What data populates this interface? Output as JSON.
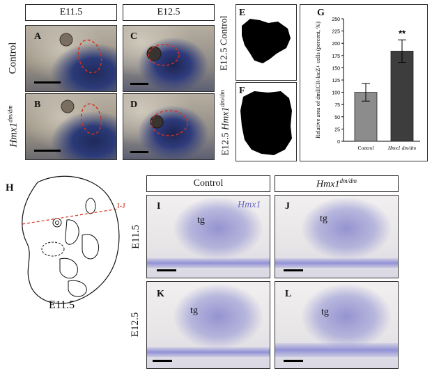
{
  "headers": {
    "top_e115": "E11.5",
    "top_e125": "E12.5",
    "bottom_control": "Control"
  },
  "rows": {
    "control": "Control",
    "mutant_base": "Hmx1",
    "mutant_sup": "dm/dm"
  },
  "panels": {
    "A": "A",
    "B": "B",
    "C": "C",
    "D": "D",
    "E": "E",
    "F": "F",
    "G": "G",
    "H": "H",
    "I": "I",
    "J": "J",
    "K": "K",
    "L": "L"
  },
  "ef_labels": {
    "E": "E12.5 Control",
    "F_prefix": "E12.5 ",
    "F_gene": "Hmx1",
    "F_sup": "dm/dm"
  },
  "schematic": {
    "section_label": "I-J",
    "stage": "E11.5"
  },
  "ish": {
    "gene_label": "Hmx1",
    "tissue_label": "tg",
    "row1": "E11.5",
    "row2": "E12.5"
  },
  "chart_data": {
    "type": "bar",
    "categories": [
      "Control",
      "Hmx1 dm/dm"
    ],
    "values": [
      100,
      184
    ],
    "errors": [
      18,
      23
    ],
    "ylim": [
      0,
      250
    ],
    "yticks": [
      0,
      25,
      50,
      75,
      100,
      125,
      150,
      175,
      200,
      225,
      250
    ],
    "ylabel": "Relative area of dmECR-lacZ+ cells (percent, %)",
    "significance": "**",
    "colors": {
      "control": "#8c8c8c",
      "mutant": "#3d3d3d"
    }
  }
}
